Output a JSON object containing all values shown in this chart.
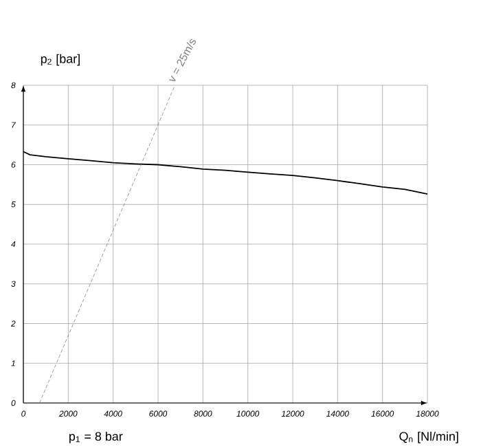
{
  "chart_data": {
    "type": "line",
    "xlabel": "Q$_{n}$ [Nl/min]",
    "ylabel": "p$_{2}$ [bar]",
    "annotations": [
      "p$_{1}$ = 8 bar"
    ],
    "xlim": [
      0,
      18000
    ],
    "ylim": [
      0,
      8
    ],
    "xticks": [
      0,
      2000,
      4000,
      6000,
      8000,
      10000,
      12000,
      14000,
      16000,
      18000
    ],
    "yticks": [
      0,
      1,
      2,
      3,
      4,
      5,
      6,
      7,
      8
    ],
    "grid": true,
    "marker": "none",
    "series": [
      {
        "color": "#000000",
        "line_style": "solid",
        "x": [
          0,
          300,
          1000,
          2000,
          3000,
          4000,
          5000,
          6000,
          7000,
          8000,
          9000,
          10000,
          11000,
          12000,
          13000,
          14000,
          15000,
          16000,
          17000,
          18000
        ],
        "values": [
          6.33,
          6.25,
          6.2,
          6.15,
          6.1,
          6.05,
          6.02,
          6.0,
          5.95,
          5.89,
          5.86,
          5.81,
          5.77,
          5.73,
          5.67,
          5.6,
          5.52,
          5.44,
          5.38,
          5.26
        ]
      },
      {
        "name": "v = 25m/s",
        "color": "#808080",
        "line_style": "dashed",
        "x": [
          720,
          6750
        ],
        "values": [
          0,
          8
        ]
      }
    ]
  }
}
